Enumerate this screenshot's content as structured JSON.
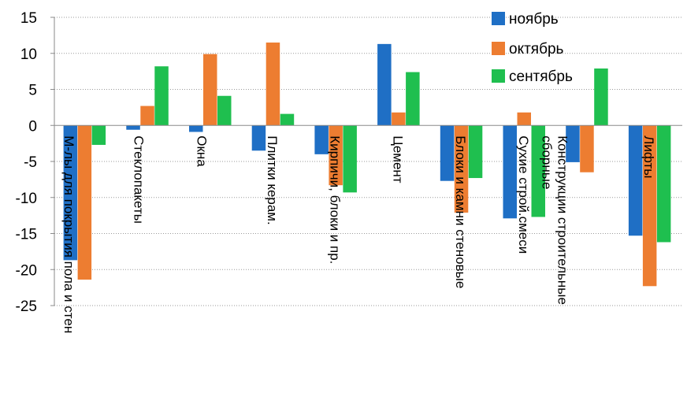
{
  "chart_data": {
    "type": "bar",
    "categories": [
      [
        "М-лы для покрытия пола и стен"
      ],
      [
        "Стеклопакеты"
      ],
      [
        "Окна"
      ],
      [
        "Плитки керам."
      ],
      [
        "Кирпичи, блоки и пр."
      ],
      [
        "Цемент"
      ],
      [
        "Блоки и камни стеновые"
      ],
      [
        "Сухие строй.смеси"
      ],
      [
        "Конструкции строительные",
        "сборные"
      ],
      [
        "Лифты"
      ]
    ],
    "series": [
      {
        "name": "ноябрь",
        "color": "#1f6fc5",
        "values": [
          -18.7,
          -0.6,
          -0.9,
          -3.5,
          -4.0,
          11.3,
          -7.7,
          -12.9,
          -5.1,
          -15.3
        ]
      },
      {
        "name": "октябрь",
        "color": "#ed7d31",
        "values": [
          -21.4,
          2.7,
          9.9,
          11.5,
          -8.3,
          1.8,
          -12.1,
          1.8,
          -6.5,
          -22.3
        ]
      },
      {
        "name": "сентябрь",
        "color": "#1fbf4f",
        "values": [
          -2.7,
          8.2,
          4.1,
          1.6,
          -9.3,
          7.4,
          -7.3,
          -12.7,
          7.9,
          -16.2
        ]
      }
    ],
    "ylim": [
      -25,
      15
    ],
    "yticks": [
      "15",
      "10",
      "5",
      "0",
      "-5",
      "-10",
      "-15",
      "-20",
      "-25"
    ],
    "grid": true,
    "legend": "top-right"
  }
}
